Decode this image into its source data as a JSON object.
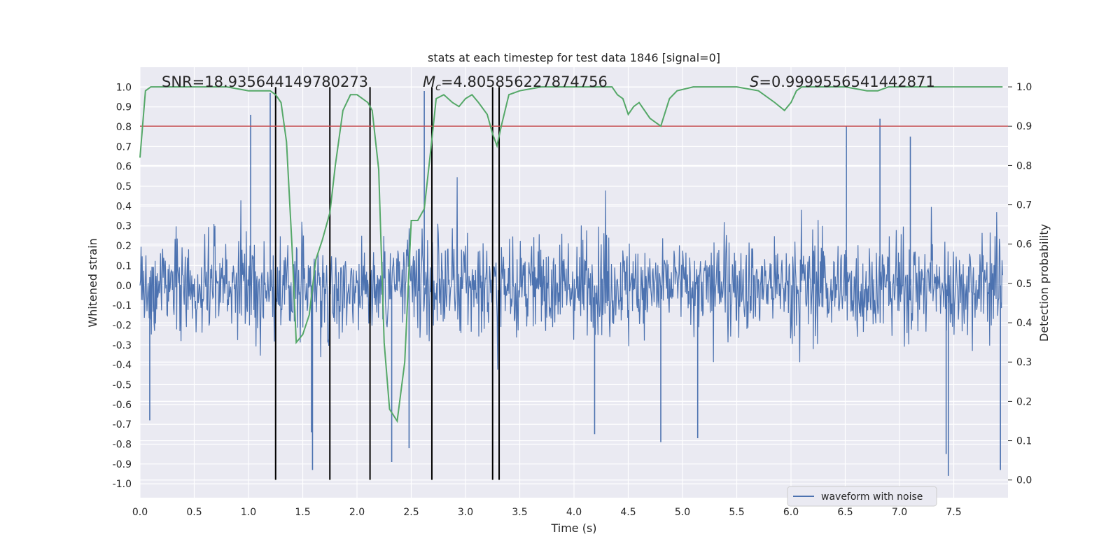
{
  "chart_data": {
    "type": "line",
    "title": "stats at each timestep for test data 1846 [signal=0]",
    "xlabel": "Time (s)",
    "ylabel": "Whitened strain",
    "ylabel_right": "Detection probability",
    "xlim": [
      0.0,
      8.0
    ],
    "ylim": [
      -1.07,
      1.1
    ],
    "ylim_right": [
      -0.045,
      1.05
    ],
    "x_ticks": [
      "0.0",
      "0.5",
      "1.0",
      "1.5",
      "2.0",
      "2.5",
      "3.0",
      "3.5",
      "4.0",
      "4.5",
      "5.0",
      "5.5",
      "6.0",
      "6.5",
      "7.0",
      "7.5"
    ],
    "y_ticks": [
      "1.0",
      "0.9",
      "0.8",
      "0.7",
      "0.6",
      "0.5",
      "0.4",
      "0.3",
      "0.2",
      "0.1",
      "0.0",
      "-0.1",
      "-0.2",
      "-0.3",
      "-0.4",
      "-0.5",
      "-0.6",
      "-0.7",
      "-0.8",
      "-0.9",
      "-1.0"
    ],
    "y_ticks_right": [
      "1.0",
      "0.9",
      "0.8",
      "0.7",
      "0.6",
      "0.5",
      "0.4",
      "0.3",
      "0.2",
      "0.1",
      "0.0"
    ],
    "annotations": {
      "snr": "SNR=18.935644149780273",
      "mc_symbol": "M",
      "mc_sub": "c",
      "mc_value": "=4.805856227874756",
      "s_symbol": "S",
      "s_value": "=0.9999556541442871"
    },
    "legend": {
      "label": "waveform with noise",
      "loc": "lower-right"
    },
    "threshold": {
      "value": 0.9,
      "axis": "right",
      "color": "#c44e52"
    },
    "vlines": [
      1.25,
      1.75,
      2.12,
      2.69,
      3.25,
      3.31
    ],
    "vline_range": [
      -0.98,
      1.0
    ],
    "noise_series": {
      "name": "waveform with noise",
      "color": "#4c72b0",
      "note": "dense whitened noise, roughly within +/-0.4 with occasional spikes up to +/-0.95",
      "spikes": [
        {
          "x": 1.02,
          "y": 0.86
        },
        {
          "x": 1.2,
          "y": 0.97
        },
        {
          "x": 2.62,
          "y": 0.98
        },
        {
          "x": 6.82,
          "y": 0.84
        },
        {
          "x": 6.51,
          "y": 0.8
        },
        {
          "x": 7.1,
          "y": 0.75
        },
        {
          "x": 1.59,
          "y": -0.93
        },
        {
          "x": 2.32,
          "y": -0.89
        },
        {
          "x": 7.45,
          "y": -0.96
        },
        {
          "x": 7.93,
          "y": -0.93
        },
        {
          "x": 1.58,
          "y": -0.74
        },
        {
          "x": 2.48,
          "y": -0.82
        },
        {
          "x": 4.8,
          "y": -0.79
        },
        {
          "x": 5.14,
          "y": -0.77
        },
        {
          "x": 4.19,
          "y": -0.75
        },
        {
          "x": 0.09,
          "y": -0.68
        },
        {
          "x": 7.43,
          "y": -0.85
        }
      ]
    },
    "probability_series": {
      "name": "detection probability",
      "color": "#55a868",
      "x": [
        0.0,
        0.05,
        0.1,
        0.2,
        0.3,
        0.5,
        0.8,
        1.0,
        1.1,
        1.2,
        1.25,
        1.3,
        1.35,
        1.4,
        1.44,
        1.5,
        1.56,
        1.62,
        1.68,
        1.75,
        1.8,
        1.87,
        1.94,
        2.0,
        2.1,
        2.14,
        2.2,
        2.25,
        2.3,
        2.37,
        2.44,
        2.5,
        2.56,
        2.62,
        2.68,
        2.73,
        2.8,
        2.88,
        2.94,
        3.0,
        3.06,
        3.12,
        3.2,
        3.25,
        3.29,
        3.33,
        3.4,
        3.5,
        3.7,
        4.0,
        4.2,
        4.35,
        4.4,
        4.45,
        4.5,
        4.55,
        4.6,
        4.7,
        4.8,
        4.88,
        4.95,
        5.1,
        5.5,
        5.7,
        5.85,
        5.94,
        6.0,
        6.05,
        6.1,
        6.3,
        6.5,
        6.7,
        6.8,
        6.9,
        7.2,
        7.5,
        7.95
      ],
      "y": [
        0.82,
        0.99,
        1.0,
        1.0,
        1.0,
        1.0,
        1.0,
        0.99,
        0.99,
        0.99,
        0.98,
        0.96,
        0.86,
        0.6,
        0.35,
        0.37,
        0.42,
        0.56,
        0.61,
        0.68,
        0.8,
        0.94,
        0.98,
        0.98,
        0.96,
        0.94,
        0.79,
        0.35,
        0.18,
        0.15,
        0.3,
        0.66,
        0.66,
        0.69,
        0.84,
        0.97,
        0.98,
        0.96,
        0.95,
        0.97,
        0.98,
        0.96,
        0.93,
        0.88,
        0.85,
        0.9,
        0.98,
        0.99,
        1.0,
        1.0,
        1.0,
        1.0,
        0.98,
        0.97,
        0.93,
        0.95,
        0.96,
        0.92,
        0.9,
        0.97,
        0.99,
        1.0,
        1.0,
        0.99,
        0.96,
        0.94,
        0.96,
        0.99,
        1.0,
        1.0,
        1.0,
        0.99,
        0.99,
        1.0,
        1.0,
        1.0,
        1.0
      ]
    }
  }
}
